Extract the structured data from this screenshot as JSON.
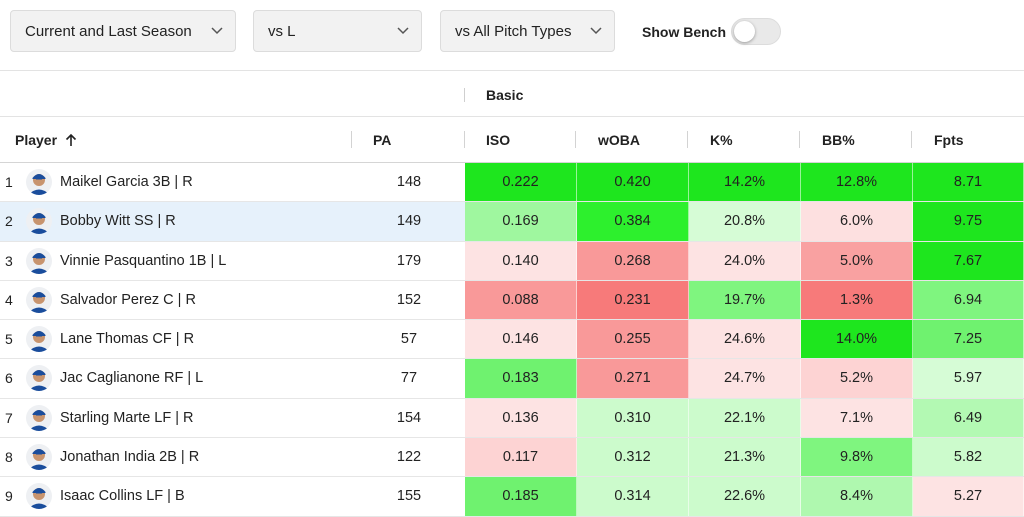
{
  "filters": {
    "season": "Current and Last Season",
    "handedness": "vs L",
    "pitch": "vs All Pitch Types"
  },
  "bench": {
    "label": "Show Bench",
    "on": false
  },
  "table": {
    "group_label": "Basic",
    "columns": {
      "player": "Player",
      "pa": "PA",
      "iso": "ISO",
      "woba": "wOBA",
      "k": "K%",
      "bb": "BB%",
      "fpts": "Fpts"
    },
    "rows": [
      {
        "rank": "1",
        "name": "Maikel Garcia 3B | R",
        "pa": "148",
        "iso": "0.222",
        "woba": "0.420",
        "k": "14.2%",
        "bb": "12.8%",
        "fpts": "8.71"
      },
      {
        "rank": "2",
        "name": "Bobby Witt SS | R",
        "pa": "149",
        "iso": "0.169",
        "woba": "0.384",
        "k": "20.8%",
        "bb": "6.0%",
        "fpts": "9.75"
      },
      {
        "rank": "3",
        "name": "Vinnie Pasquantino 1B | L",
        "pa": "179",
        "iso": "0.140",
        "woba": "0.268",
        "k": "24.0%",
        "bb": "5.0%",
        "fpts": "7.67"
      },
      {
        "rank": "4",
        "name": "Salvador Perez C | R",
        "pa": "152",
        "iso": "0.088",
        "woba": "0.231",
        "k": "19.7%",
        "bb": "1.3%",
        "fpts": "6.94"
      },
      {
        "rank": "5",
        "name": "Lane Thomas CF | R",
        "pa": "57",
        "iso": "0.146",
        "woba": "0.255",
        "k": "24.6%",
        "bb": "14.0%",
        "fpts": "7.25"
      },
      {
        "rank": "6",
        "name": "Jac Caglianone RF | L",
        "pa": "77",
        "iso": "0.183",
        "woba": "0.271",
        "k": "24.7%",
        "bb": "5.2%",
        "fpts": "5.97"
      },
      {
        "rank": "7",
        "name": "Starling Marte LF | R",
        "pa": "154",
        "iso": "0.136",
        "woba": "0.310",
        "k": "22.1%",
        "bb": "7.1%",
        "fpts": "6.49"
      },
      {
        "rank": "8",
        "name": "Jonathan India 2B | R",
        "pa": "122",
        "iso": "0.117",
        "woba": "0.312",
        "k": "21.3%",
        "bb": "9.8%",
        "fpts": "5.82"
      },
      {
        "rank": "9",
        "name": "Isaac Collins LF | B",
        "pa": "155",
        "iso": "0.185",
        "woba": "0.314",
        "k": "22.6%",
        "bb": "8.4%",
        "fpts": "5.27"
      }
    ],
    "cell_colors": [
      [
        "#1ee61e",
        "#1ee61e",
        "#1ee61e",
        "#1ee61e",
        "#1ee61e"
      ],
      [
        "#9ff79f",
        "#2df02d",
        "#d6fcd6",
        "#fde0e0",
        "#1ee61e"
      ],
      [
        "#fde3e3",
        "#f99999",
        "#fde3e3",
        "#f9a1a1",
        "#1ee61e"
      ],
      [
        "#f99999",
        "#f77a7a",
        "#7ff57f",
        "#f77a7a",
        "#7ff57f"
      ],
      [
        "#fde3e3",
        "#f99999",
        "#fde3e3",
        "#1ee61e",
        "#6ff26f"
      ],
      [
        "#6ff26f",
        "#f99999",
        "#fde3e3",
        "#fdd3d3",
        "#d6fcd6"
      ],
      [
        "#fde3e3",
        "#ccfbcc",
        "#ccfbcc",
        "#fde3e3",
        "#b3f9b3"
      ],
      [
        "#fdd3d3",
        "#ccfbcc",
        "#ccfbcc",
        "#7ff57f",
        "#ccfbcc"
      ],
      [
        "#6ff26f",
        "#ccfbcc",
        "#ccfbcc",
        "#aff8af",
        "#fde3e3"
      ]
    ],
    "selected_row": 1
  },
  "icons": {
    "chevron": "chevron-down-icon",
    "sort": "arrow-up-icon",
    "avatar": "player-headshot-icon"
  }
}
